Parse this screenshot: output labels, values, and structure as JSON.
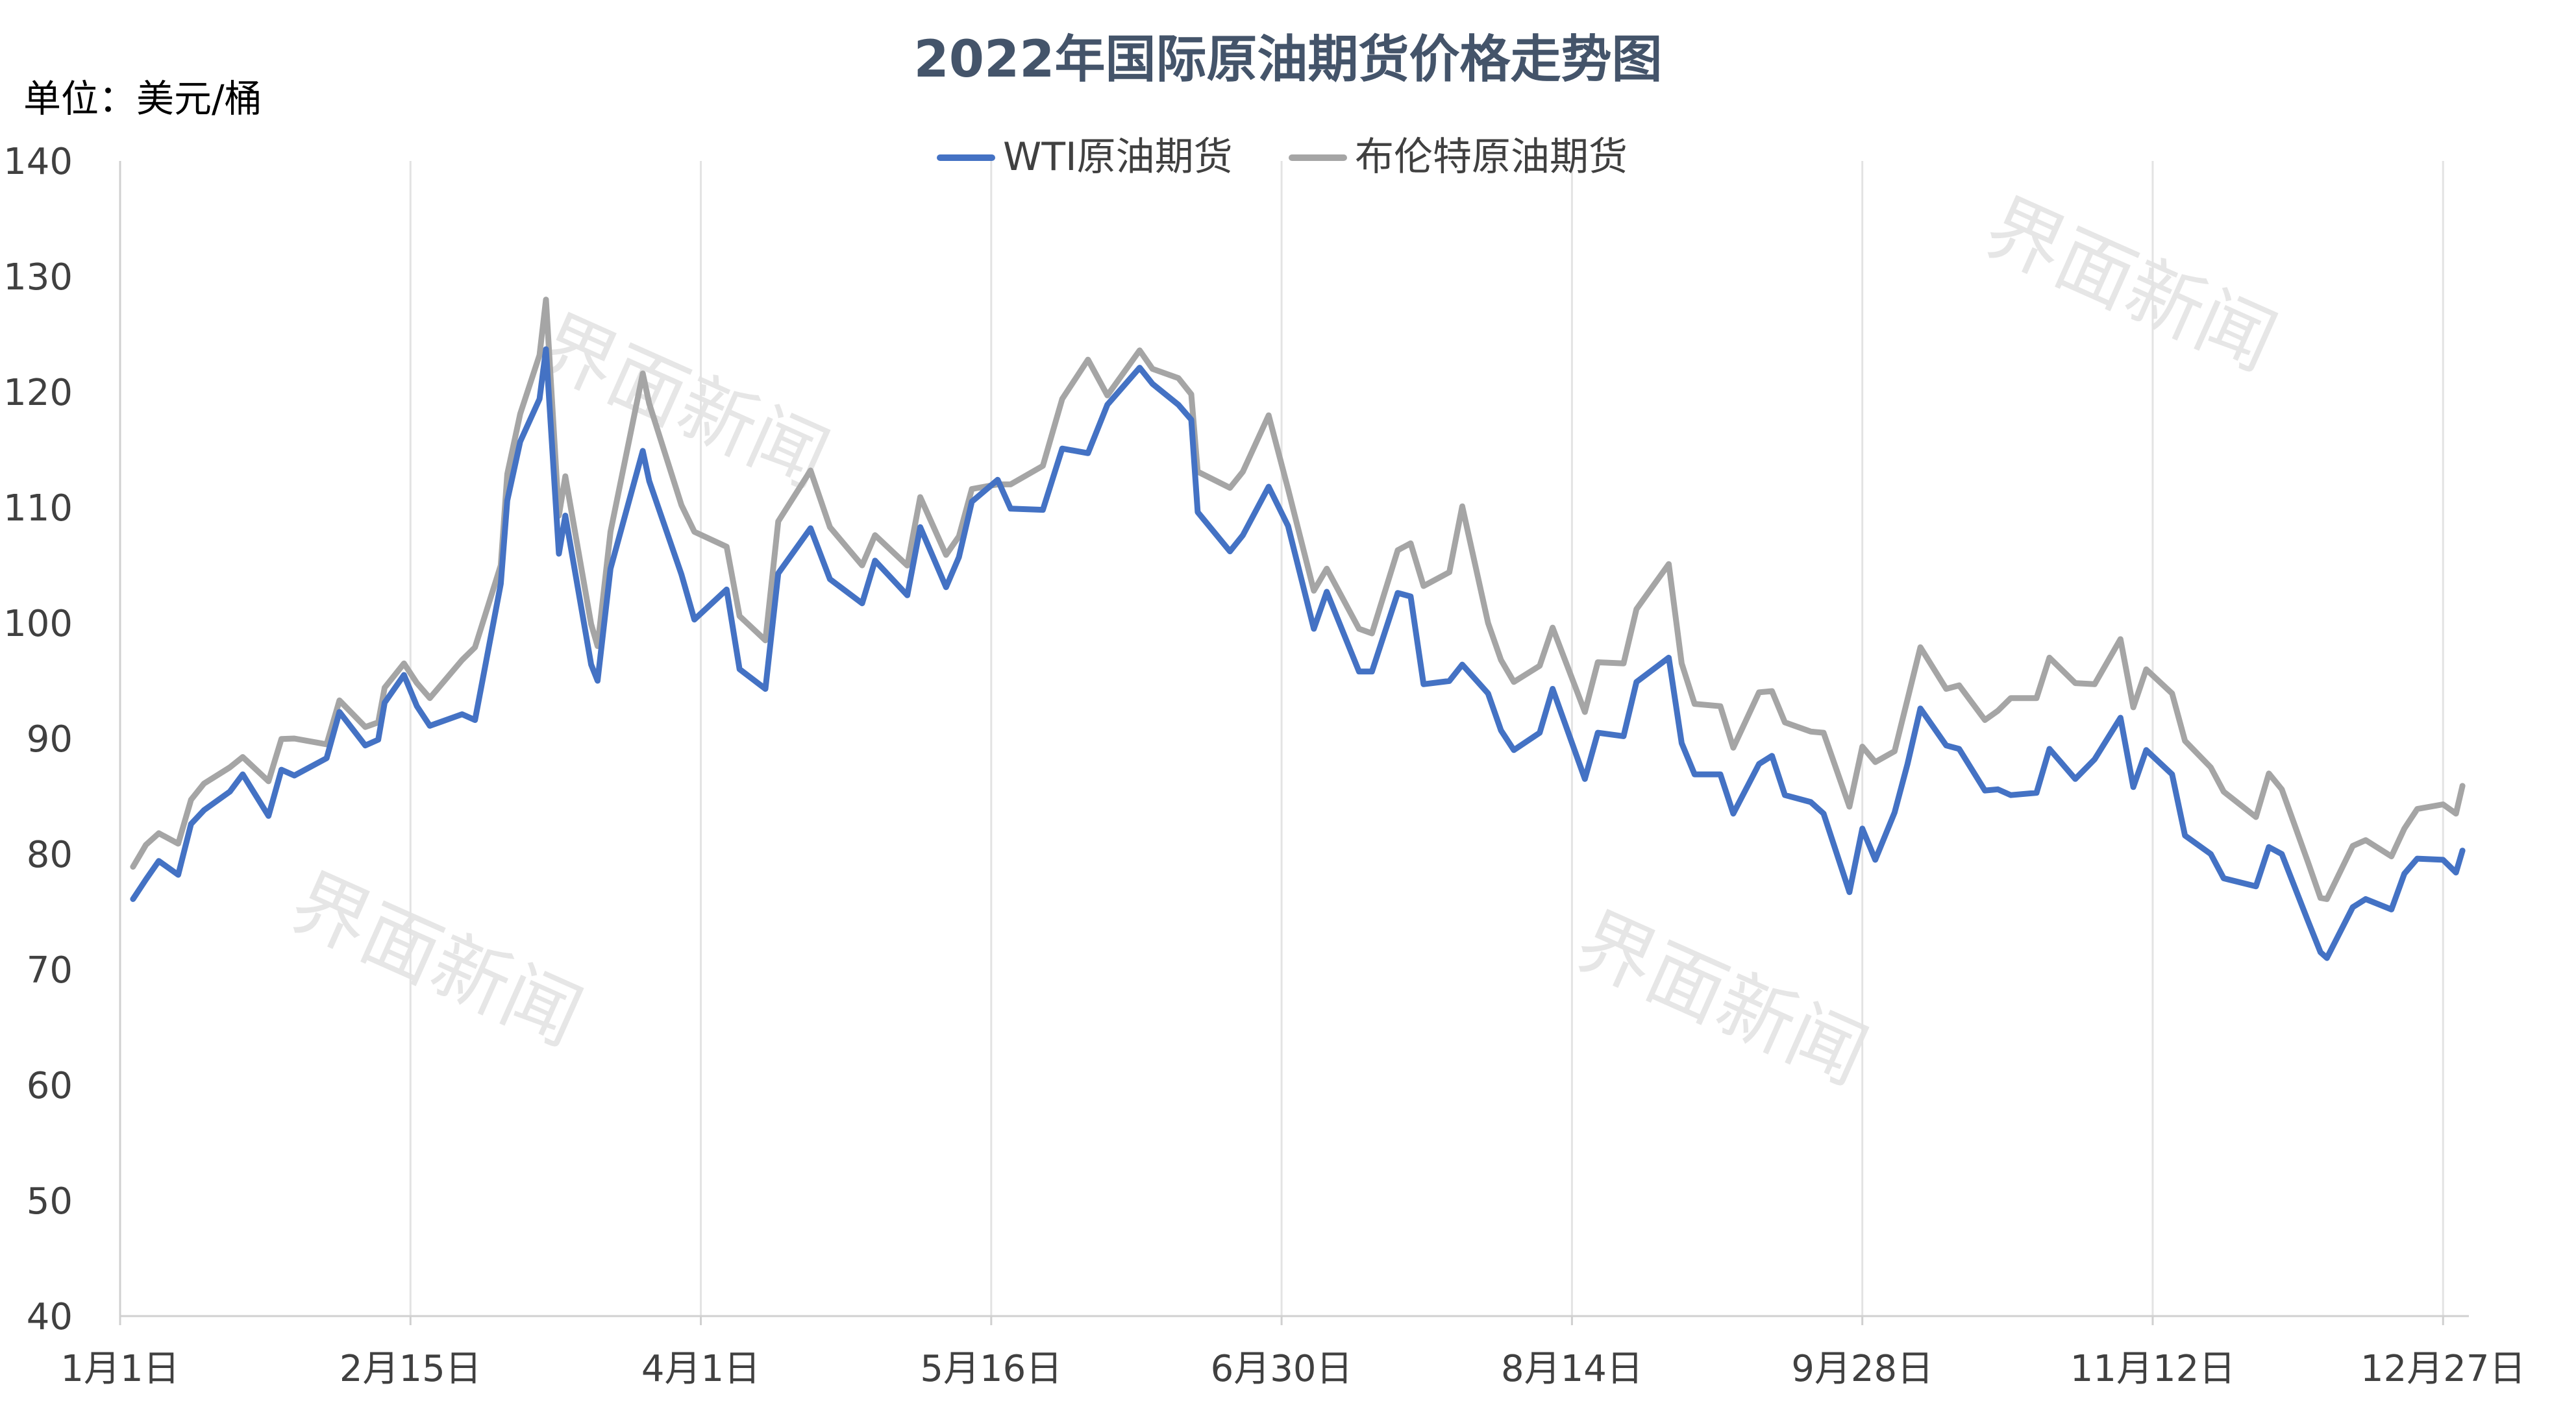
{
  "chart_data": {
    "type": "line",
    "title": "2022年国际原油期货价格走势图",
    "unit_label": "单位：美元/桶",
    "ylim": [
      40,
      140
    ],
    "yticks": [
      40,
      50,
      60,
      70,
      80,
      90,
      100,
      110,
      120,
      130,
      140
    ],
    "xlim": [
      "2022-01-01",
      "2022-12-31"
    ],
    "xticks": [
      {
        "date": "2022-01-01",
        "label": "1月1日"
      },
      {
        "date": "2022-02-15",
        "label": "2月15日"
      },
      {
        "date": "2022-04-01",
        "label": "4月1日"
      },
      {
        "date": "2022-05-16",
        "label": "5月16日"
      },
      {
        "date": "2022-06-30",
        "label": "6月30日"
      },
      {
        "date": "2022-08-14",
        "label": "8月14日"
      },
      {
        "date": "2022-09-28",
        "label": "9月28日"
      },
      {
        "date": "2022-11-12",
        "label": "11月12日"
      },
      {
        "date": "2022-12-27",
        "label": "12月27日"
      }
    ],
    "grid": "vertical",
    "legend_position": "top-center",
    "watermark": "界面新闻",
    "series": [
      {
        "name": "WTI原油期货",
        "color": "#4472C4",
        "points": [
          [
            "2022-01-03",
            76.1
          ],
          [
            "2022-01-05",
            77.8
          ],
          [
            "2022-01-07",
            79.4
          ],
          [
            "2022-01-10",
            78.2
          ],
          [
            "2022-01-12",
            82.6
          ],
          [
            "2022-01-14",
            83.8
          ],
          [
            "2022-01-18",
            85.4
          ],
          [
            "2022-01-20",
            86.9
          ],
          [
            "2022-01-24",
            83.3
          ],
          [
            "2022-01-26",
            87.3
          ],
          [
            "2022-01-28",
            86.8
          ],
          [
            "2022-02-02",
            88.3
          ],
          [
            "2022-02-04",
            92.3
          ],
          [
            "2022-02-08",
            89.4
          ],
          [
            "2022-02-10",
            89.9
          ],
          [
            "2022-02-11",
            93.1
          ],
          [
            "2022-02-14",
            95.5
          ],
          [
            "2022-02-16",
            92.8
          ],
          [
            "2022-02-18",
            91.1
          ],
          [
            "2022-02-23",
            92.1
          ],
          [
            "2022-02-25",
            91.6
          ],
          [
            "2022-03-01",
            103.4
          ],
          [
            "2022-03-02",
            110.6
          ],
          [
            "2022-03-04",
            115.7
          ],
          [
            "2022-03-07",
            119.4
          ],
          [
            "2022-03-08",
            123.7
          ],
          [
            "2022-03-10",
            106.0
          ],
          [
            "2022-03-11",
            109.3
          ],
          [
            "2022-03-15",
            96.4
          ],
          [
            "2022-03-16",
            95.0
          ],
          [
            "2022-03-18",
            104.7
          ],
          [
            "2022-03-23",
            114.9
          ],
          [
            "2022-03-24",
            112.3
          ],
          [
            "2022-03-29",
            104.2
          ],
          [
            "2022-03-31",
            100.3
          ],
          [
            "2022-04-05",
            102.9
          ],
          [
            "2022-04-07",
            96.0
          ],
          [
            "2022-04-11",
            94.3
          ],
          [
            "2022-04-13",
            104.3
          ],
          [
            "2022-04-18",
            108.2
          ],
          [
            "2022-04-21",
            103.8
          ],
          [
            "2022-04-26",
            101.7
          ],
          [
            "2022-04-28",
            105.4
          ],
          [
            "2022-05-03",
            102.4
          ],
          [
            "2022-05-05",
            108.3
          ],
          [
            "2022-05-09",
            103.1
          ],
          [
            "2022-05-11",
            105.7
          ],
          [
            "2022-05-13",
            110.5
          ],
          [
            "2022-05-17",
            112.4
          ],
          [
            "2022-05-19",
            109.9
          ],
          [
            "2022-05-24",
            109.8
          ],
          [
            "2022-05-27",
            115.1
          ],
          [
            "2022-05-31",
            114.7
          ],
          [
            "2022-06-03",
            118.9
          ],
          [
            "2022-06-08",
            122.1
          ],
          [
            "2022-06-10",
            120.7
          ],
          [
            "2022-06-14",
            118.9
          ],
          [
            "2022-06-16",
            117.6
          ],
          [
            "2022-06-17",
            109.6
          ],
          [
            "2022-06-22",
            106.2
          ],
          [
            "2022-06-24",
            107.6
          ],
          [
            "2022-06-28",
            111.8
          ],
          [
            "2022-07-01",
            108.4
          ],
          [
            "2022-07-05",
            99.5
          ],
          [
            "2022-07-07",
            102.7
          ],
          [
            "2022-07-12",
            95.8
          ],
          [
            "2022-07-14",
            95.8
          ],
          [
            "2022-07-18",
            102.6
          ],
          [
            "2022-07-20",
            102.3
          ],
          [
            "2022-07-22",
            94.7
          ],
          [
            "2022-07-26",
            94.98
          ],
          [
            "2022-07-28",
            96.4
          ],
          [
            "2022-08-01",
            93.9
          ],
          [
            "2022-08-03",
            90.7
          ],
          [
            "2022-08-05",
            89.0
          ],
          [
            "2022-08-09",
            90.5
          ],
          [
            "2022-08-11",
            94.3
          ],
          [
            "2022-08-16",
            86.5
          ],
          [
            "2022-08-18",
            90.5
          ],
          [
            "2022-08-22",
            90.2
          ],
          [
            "2022-08-24",
            94.9
          ],
          [
            "2022-08-29",
            97.0
          ],
          [
            "2022-08-31",
            89.6
          ],
          [
            "2022-09-02",
            86.9
          ],
          [
            "2022-09-06",
            86.9
          ],
          [
            "2022-09-08",
            83.5
          ],
          [
            "2022-09-12",
            87.8
          ],
          [
            "2022-09-14",
            88.5
          ],
          [
            "2022-09-16",
            85.1
          ],
          [
            "2022-09-20",
            84.5
          ],
          [
            "2022-09-22",
            83.5
          ],
          [
            "2022-09-26",
            76.7
          ],
          [
            "2022-09-28",
            82.2
          ],
          [
            "2022-09-30",
            79.5
          ],
          [
            "2022-10-03",
            83.6
          ],
          [
            "2022-10-05",
            87.8
          ],
          [
            "2022-10-07",
            92.6
          ],
          [
            "2022-10-11",
            89.4
          ],
          [
            "2022-10-13",
            89.1
          ],
          [
            "2022-10-17",
            85.5
          ],
          [
            "2022-10-19",
            85.6
          ],
          [
            "2022-10-21",
            85.1
          ],
          [
            "2022-10-25",
            85.3
          ],
          [
            "2022-10-27",
            89.1
          ],
          [
            "2022-10-31",
            86.5
          ],
          [
            "2022-11-03",
            88.2
          ],
          [
            "2022-11-07",
            91.8
          ],
          [
            "2022-11-09",
            85.8
          ],
          [
            "2022-11-11",
            89.0
          ],
          [
            "2022-11-15",
            86.9
          ],
          [
            "2022-11-17",
            81.6
          ],
          [
            "2022-11-21",
            80.0
          ],
          [
            "2022-11-23",
            77.9
          ],
          [
            "2022-11-28",
            77.2
          ],
          [
            "2022-11-30",
            80.6
          ],
          [
            "2022-12-02",
            80.0
          ],
          [
            "2022-12-06",
            74.3
          ],
          [
            "2022-12-08",
            71.5
          ],
          [
            "2022-12-09",
            71.0
          ],
          [
            "2022-12-13",
            75.4
          ],
          [
            "2022-12-15",
            76.1
          ],
          [
            "2022-12-19",
            75.2
          ],
          [
            "2022-12-21",
            78.3
          ],
          [
            "2022-12-23",
            79.6
          ],
          [
            "2022-12-27",
            79.5
          ],
          [
            "2022-12-29",
            78.4
          ],
          [
            "2022-12-30",
            80.3
          ]
        ]
      },
      {
        "name": "布伦特原油期货",
        "color": "#A5A5A5",
        "points": [
          [
            "2022-01-03",
            78.9
          ],
          [
            "2022-01-05",
            80.8
          ],
          [
            "2022-01-07",
            81.8
          ],
          [
            "2022-01-10",
            80.9
          ],
          [
            "2022-01-12",
            84.7
          ],
          [
            "2022-01-14",
            86.1
          ],
          [
            "2022-01-18",
            87.5
          ],
          [
            "2022-01-20",
            88.4
          ],
          [
            "2022-01-24",
            86.3
          ],
          [
            "2022-01-26",
            89.96
          ],
          [
            "2022-01-28",
            90.0
          ],
          [
            "2022-02-02",
            89.5
          ],
          [
            "2022-02-04",
            93.3
          ],
          [
            "2022-02-08",
            91.0
          ],
          [
            "2022-02-10",
            91.4
          ],
          [
            "2022-02-11",
            94.4
          ],
          [
            "2022-02-14",
            96.5
          ],
          [
            "2022-02-16",
            94.8
          ],
          [
            "2022-02-18",
            93.5
          ],
          [
            "2022-02-23",
            96.8
          ],
          [
            "2022-02-25",
            97.9
          ],
          [
            "2022-03-01",
            105.0
          ],
          [
            "2022-03-02",
            112.9
          ],
          [
            "2022-03-04",
            118.1
          ],
          [
            "2022-03-07",
            123.2
          ],
          [
            "2022-03-08",
            128.0
          ],
          [
            "2022-03-10",
            109.3
          ],
          [
            "2022-03-11",
            112.7
          ],
          [
            "2022-03-15",
            99.9
          ],
          [
            "2022-03-16",
            98.0
          ],
          [
            "2022-03-18",
            107.9
          ],
          [
            "2022-03-23",
            121.6
          ],
          [
            "2022-03-24",
            119.0
          ],
          [
            "2022-03-29",
            110.2
          ],
          [
            "2022-03-31",
            107.9
          ],
          [
            "2022-04-05",
            106.6
          ],
          [
            "2022-04-07",
            100.6
          ],
          [
            "2022-04-11",
            98.5
          ],
          [
            "2022-04-13",
            108.8
          ],
          [
            "2022-04-18",
            113.2
          ],
          [
            "2022-04-21",
            108.3
          ],
          [
            "2022-04-26",
            104.99
          ],
          [
            "2022-04-28",
            107.6
          ],
          [
            "2022-05-03",
            104.97
          ],
          [
            "2022-05-05",
            110.9
          ],
          [
            "2022-05-09",
            105.9
          ],
          [
            "2022-05-11",
            107.5
          ],
          [
            "2022-05-13",
            111.6
          ],
          [
            "2022-05-17",
            112.0
          ],
          [
            "2022-05-19",
            112.0
          ],
          [
            "2022-05-24",
            113.6
          ],
          [
            "2022-05-27",
            119.4
          ],
          [
            "2022-05-31",
            122.8
          ],
          [
            "2022-06-03",
            119.7
          ],
          [
            "2022-06-08",
            123.6
          ],
          [
            "2022-06-10",
            122.0
          ],
          [
            "2022-06-14",
            121.2
          ],
          [
            "2022-06-16",
            119.8
          ],
          [
            "2022-06-17",
            113.1
          ],
          [
            "2022-06-22",
            111.7
          ],
          [
            "2022-06-24",
            113.1
          ],
          [
            "2022-06-28",
            117.98
          ],
          [
            "2022-07-01",
            111.6
          ],
          [
            "2022-07-05",
            102.8
          ],
          [
            "2022-07-07",
            104.7
          ],
          [
            "2022-07-12",
            99.5
          ],
          [
            "2022-07-14",
            99.1
          ],
          [
            "2022-07-18",
            106.3
          ],
          [
            "2022-07-20",
            106.9
          ],
          [
            "2022-07-22",
            103.2
          ],
          [
            "2022-07-26",
            104.4
          ],
          [
            "2022-07-28",
            110.1
          ],
          [
            "2022-08-01",
            100.0
          ],
          [
            "2022-08-03",
            96.8
          ],
          [
            "2022-08-05",
            94.9
          ],
          [
            "2022-08-09",
            96.3
          ],
          [
            "2022-08-11",
            99.6
          ],
          [
            "2022-08-16",
            92.3
          ],
          [
            "2022-08-18",
            96.6
          ],
          [
            "2022-08-22",
            96.5
          ],
          [
            "2022-08-24",
            101.2
          ],
          [
            "2022-08-29",
            105.1
          ],
          [
            "2022-08-31",
            96.5
          ],
          [
            "2022-09-02",
            93.0
          ],
          [
            "2022-09-06",
            92.8
          ],
          [
            "2022-09-08",
            89.2
          ],
          [
            "2022-09-12",
            94.0
          ],
          [
            "2022-09-14",
            94.1
          ],
          [
            "2022-09-16",
            91.4
          ],
          [
            "2022-09-20",
            90.6
          ],
          [
            "2022-09-22",
            90.5
          ],
          [
            "2022-09-26",
            84.1
          ],
          [
            "2022-09-28",
            89.3
          ],
          [
            "2022-09-30",
            87.96
          ],
          [
            "2022-10-03",
            88.9
          ],
          [
            "2022-10-05",
            93.4
          ],
          [
            "2022-10-07",
            97.9
          ],
          [
            "2022-10-11",
            94.3
          ],
          [
            "2022-10-13",
            94.6
          ],
          [
            "2022-10-17",
            91.6
          ],
          [
            "2022-10-19",
            92.4
          ],
          [
            "2022-10-21",
            93.5
          ],
          [
            "2022-10-25",
            93.5
          ],
          [
            "2022-10-27",
            97.0
          ],
          [
            "2022-10-31",
            94.8
          ],
          [
            "2022-11-03",
            94.7
          ],
          [
            "2022-11-07",
            98.6
          ],
          [
            "2022-11-09",
            92.7
          ],
          [
            "2022-11-11",
            95.99
          ],
          [
            "2022-11-15",
            93.9
          ],
          [
            "2022-11-17",
            89.8
          ],
          [
            "2022-11-21",
            87.5
          ],
          [
            "2022-11-23",
            85.4
          ],
          [
            "2022-11-28",
            83.2
          ],
          [
            "2022-11-30",
            86.97
          ],
          [
            "2022-12-02",
            85.6
          ],
          [
            "2022-12-06",
            79.4
          ],
          [
            "2022-12-08",
            76.2
          ],
          [
            "2022-12-09",
            76.1
          ],
          [
            "2022-12-13",
            80.7
          ],
          [
            "2022-12-15",
            81.2
          ],
          [
            "2022-12-19",
            79.8
          ],
          [
            "2022-12-21",
            82.2
          ],
          [
            "2022-12-23",
            83.9
          ],
          [
            "2022-12-27",
            84.3
          ],
          [
            "2022-12-29",
            83.5
          ],
          [
            "2022-12-30",
            85.9
          ]
        ]
      }
    ]
  }
}
